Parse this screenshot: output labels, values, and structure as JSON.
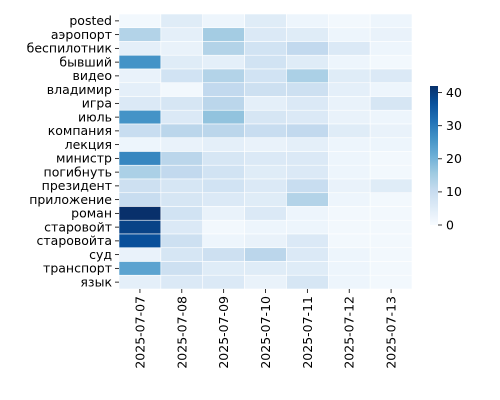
{
  "chart_data": {
    "type": "heatmap",
    "title": "",
    "xlabel": "",
    "ylabel": "",
    "x": [
      "2025-07-07",
      "2025-07-08",
      "2025-07-09",
      "2025-07-10",
      "2025-07-11",
      "2025-07-12",
      "2025-07-13"
    ],
    "y": [
      "posted",
      "аэропорт",
      "беспилотник",
      "бывший",
      "видео",
      "владимир",
      "игра",
      "июль",
      "компания",
      "лекция",
      "министр",
      "погибнуть",
      "президент",
      "приложение",
      "роман",
      "старовойт",
      "старовойта",
      "суд",
      "транспорт",
      "язык"
    ],
    "values": [
      [
        1,
        5,
        2,
        5,
        2,
        1,
        2
      ],
      [
        13,
        4,
        15,
        6,
        5,
        2,
        3
      ],
      [
        4,
        3,
        13,
        8,
        11,
        6,
        2
      ],
      [
        26,
        5,
        4,
        8,
        5,
        2,
        1
      ],
      [
        3,
        8,
        13,
        8,
        14,
        5,
        6
      ],
      [
        4,
        1,
        11,
        9,
        9,
        4,
        2
      ],
      [
        6,
        7,
        12,
        4,
        6,
        3,
        7
      ],
      [
        26,
        6,
        17,
        7,
        6,
        3,
        2
      ],
      [
        10,
        12,
        12,
        10,
        11,
        5,
        3
      ],
      [
        2,
        3,
        4,
        3,
        4,
        2,
        2
      ],
      [
        28,
        12,
        7,
        6,
        6,
        2,
        1
      ],
      [
        14,
        11,
        8,
        5,
        6,
        2,
        1
      ],
      [
        9,
        7,
        8,
        6,
        10,
        3,
        5
      ],
      [
        10,
        7,
        6,
        5,
        13,
        2,
        1
      ],
      [
        42,
        8,
        3,
        6,
        2,
        1,
        1
      ],
      [
        39,
        6,
        1,
        2,
        2,
        1,
        1
      ],
      [
        37,
        9,
        2,
        3,
        6,
        1,
        1
      ],
      [
        3,
        7,
        9,
        12,
        6,
        2,
        1
      ],
      [
        23,
        9,
        5,
        5,
        5,
        2,
        1
      ],
      [
        4,
        6,
        6,
        3,
        7,
        2,
        1
      ]
    ],
    "colorbar": {
      "min": 0,
      "max": 42,
      "ticks": [
        0,
        10,
        20,
        30,
        40
      ],
      "colormap": "Blues"
    },
    "grid": false
  }
}
